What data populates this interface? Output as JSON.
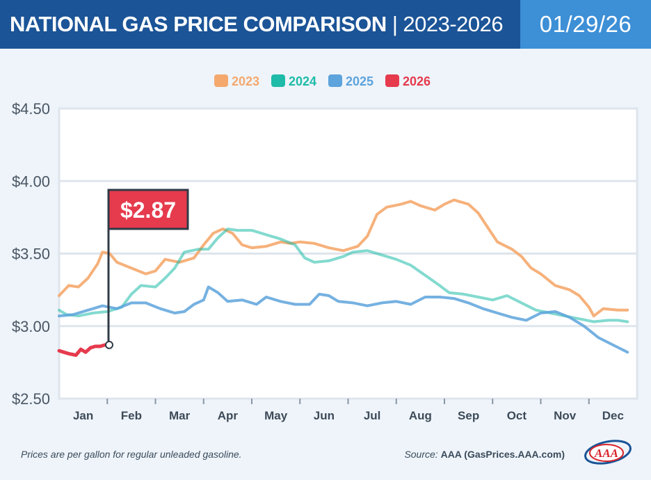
{
  "header": {
    "title_bold": "NATIONAL GAS PRICE COMPARISON",
    "separator": "|",
    "title_years": "2023-2026",
    "date": "01/29/26"
  },
  "colors": {
    "2023": "#f5a86d",
    "2024": "#1ebba8",
    "2025": "#5da3dc",
    "2026": "#e63a4d",
    "header_blue": "#1b5497",
    "date_blue": "#3d8fd6",
    "callout_red": "#e63a4d"
  },
  "chart_data": {
    "type": "line",
    "title": "National Gas Price Comparison | 2023-2026",
    "xlabel": "",
    "ylabel": "",
    "x_range": [
      0,
      12
    ],
    "ylim": [
      2.5,
      4.5
    ],
    "yticks": [
      2.5,
      3.0,
      3.5,
      4.0,
      4.5
    ],
    "ytick_labels": [
      "$2.50",
      "$3.00",
      "$3.50",
      "$4.00",
      "$4.50"
    ],
    "months": [
      "Jan",
      "Feb",
      "Mar",
      "Apr",
      "May",
      "Jun",
      "Jul",
      "Aug",
      "Sep",
      "Oct",
      "Nov",
      "Dec"
    ],
    "legend": [
      "2023",
      "2024",
      "2025",
      "2026"
    ],
    "legend_position": "top-center",
    "grid": true,
    "series": [
      {
        "name": "2023",
        "points": [
          [
            0.0,
            3.21
          ],
          [
            0.2,
            3.28
          ],
          [
            0.4,
            3.27
          ],
          [
            0.6,
            3.33
          ],
          [
            0.8,
            3.43
          ],
          [
            0.9,
            3.51
          ],
          [
            1.05,
            3.5
          ],
          [
            1.2,
            3.44
          ],
          [
            1.5,
            3.4
          ],
          [
            1.8,
            3.36
          ],
          [
            2.0,
            3.38
          ],
          [
            2.2,
            3.46
          ],
          [
            2.5,
            3.44
          ],
          [
            2.8,
            3.47
          ],
          [
            3.0,
            3.56
          ],
          [
            3.2,
            3.64
          ],
          [
            3.4,
            3.67
          ],
          [
            3.6,
            3.64
          ],
          [
            3.8,
            3.56
          ],
          [
            4.0,
            3.54
          ],
          [
            4.3,
            3.55
          ],
          [
            4.6,
            3.58
          ],
          [
            4.8,
            3.57
          ],
          [
            5.0,
            3.58
          ],
          [
            5.3,
            3.57
          ],
          [
            5.6,
            3.54
          ],
          [
            5.9,
            3.52
          ],
          [
            6.2,
            3.55
          ],
          [
            6.4,
            3.62
          ],
          [
            6.6,
            3.77
          ],
          [
            6.8,
            3.82
          ],
          [
            7.1,
            3.84
          ],
          [
            7.3,
            3.86
          ],
          [
            7.5,
            3.83
          ],
          [
            7.8,
            3.8
          ],
          [
            8.0,
            3.84
          ],
          [
            8.2,
            3.87
          ],
          [
            8.5,
            3.84
          ],
          [
            8.7,
            3.78
          ],
          [
            8.9,
            3.68
          ],
          [
            9.1,
            3.58
          ],
          [
            9.4,
            3.53
          ],
          [
            9.6,
            3.48
          ],
          [
            9.8,
            3.4
          ],
          [
            10.0,
            3.36
          ],
          [
            10.3,
            3.28
          ],
          [
            10.6,
            3.25
          ],
          [
            10.8,
            3.21
          ],
          [
            11.0,
            3.13
          ],
          [
            11.1,
            3.07
          ],
          [
            11.3,
            3.12
          ],
          [
            11.6,
            3.11
          ],
          [
            11.8,
            3.11
          ]
        ]
      },
      {
        "name": "2024",
        "points": [
          [
            0.0,
            3.11
          ],
          [
            0.15,
            3.08
          ],
          [
            0.4,
            3.07
          ],
          [
            0.7,
            3.09
          ],
          [
            1.0,
            3.1
          ],
          [
            1.3,
            3.13
          ],
          [
            1.5,
            3.22
          ],
          [
            1.7,
            3.28
          ],
          [
            2.0,
            3.27
          ],
          [
            2.2,
            3.33
          ],
          [
            2.4,
            3.4
          ],
          [
            2.6,
            3.51
          ],
          [
            2.9,
            3.53
          ],
          [
            3.1,
            3.53
          ],
          [
            3.3,
            3.61
          ],
          [
            3.5,
            3.67
          ],
          [
            3.7,
            3.66
          ],
          [
            4.0,
            3.66
          ],
          [
            4.3,
            3.63
          ],
          [
            4.6,
            3.6
          ],
          [
            4.9,
            3.56
          ],
          [
            5.1,
            3.47
          ],
          [
            5.3,
            3.44
          ],
          [
            5.6,
            3.45
          ],
          [
            5.9,
            3.48
          ],
          [
            6.1,
            3.51
          ],
          [
            6.4,
            3.52
          ],
          [
            6.7,
            3.49
          ],
          [
            7.0,
            3.46
          ],
          [
            7.3,
            3.42
          ],
          [
            7.6,
            3.35
          ],
          [
            7.9,
            3.28
          ],
          [
            8.1,
            3.23
          ],
          [
            8.4,
            3.22
          ],
          [
            8.7,
            3.2
          ],
          [
            9.0,
            3.18
          ],
          [
            9.3,
            3.21
          ],
          [
            9.6,
            3.16
          ],
          [
            9.9,
            3.11
          ],
          [
            10.2,
            3.09
          ],
          [
            10.5,
            3.07
          ],
          [
            10.8,
            3.05
          ],
          [
            11.1,
            3.03
          ],
          [
            11.4,
            3.04
          ],
          [
            11.6,
            3.04
          ],
          [
            11.8,
            3.03
          ]
        ]
      },
      {
        "name": "2025",
        "points": [
          [
            0.0,
            3.07
          ],
          [
            0.3,
            3.08
          ],
          [
            0.6,
            3.11
          ],
          [
            0.9,
            3.14
          ],
          [
            1.2,
            3.12
          ],
          [
            1.5,
            3.16
          ],
          [
            1.8,
            3.16
          ],
          [
            2.1,
            3.12
          ],
          [
            2.4,
            3.09
          ],
          [
            2.6,
            3.1
          ],
          [
            2.8,
            3.15
          ],
          [
            3.0,
            3.18
          ],
          [
            3.1,
            3.27
          ],
          [
            3.3,
            3.23
          ],
          [
            3.5,
            3.17
          ],
          [
            3.8,
            3.18
          ],
          [
            4.1,
            3.15
          ],
          [
            4.3,
            3.2
          ],
          [
            4.6,
            3.17
          ],
          [
            4.9,
            3.15
          ],
          [
            5.2,
            3.15
          ],
          [
            5.4,
            3.22
          ],
          [
            5.6,
            3.21
          ],
          [
            5.8,
            3.17
          ],
          [
            6.1,
            3.16
          ],
          [
            6.4,
            3.14
          ],
          [
            6.7,
            3.16
          ],
          [
            7.0,
            3.17
          ],
          [
            7.3,
            3.15
          ],
          [
            7.6,
            3.2
          ],
          [
            7.9,
            3.2
          ],
          [
            8.2,
            3.19
          ],
          [
            8.5,
            3.16
          ],
          [
            8.8,
            3.12
          ],
          [
            9.1,
            3.09
          ],
          [
            9.4,
            3.06
          ],
          [
            9.7,
            3.04
          ],
          [
            10.0,
            3.09
          ],
          [
            10.3,
            3.1
          ],
          [
            10.6,
            3.06
          ],
          [
            10.9,
            3.0
          ],
          [
            11.2,
            2.92
          ],
          [
            11.5,
            2.87
          ],
          [
            11.8,
            2.82
          ]
        ]
      },
      {
        "name": "2026",
        "points": [
          [
            0.0,
            2.83
          ],
          [
            0.1,
            2.82
          ],
          [
            0.2,
            2.81
          ],
          [
            0.35,
            2.8
          ],
          [
            0.45,
            2.84
          ],
          [
            0.55,
            2.82
          ],
          [
            0.65,
            2.85
          ],
          [
            0.75,
            2.86
          ],
          [
            0.85,
            2.86
          ],
          [
            0.95,
            2.87
          ]
        ]
      }
    ],
    "annotations": [
      {
        "text": "$2.87",
        "x": 0.95,
        "y": 2.87,
        "series": "2026"
      }
    ]
  },
  "footer": {
    "note": "Prices are per gallon for regular unleaded gasoline.",
    "source_label": "Source:",
    "source_value": "AAA (GasPrices.AAA.com)"
  },
  "logo": {
    "text": "AAA"
  }
}
